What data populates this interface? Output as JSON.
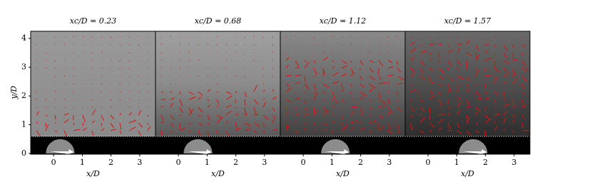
{
  "chart_data": [
    {
      "type": "image",
      "title": "xc/D = 0.23",
      "cylinder_x": 0.23,
      "xlabel": "x/D",
      "ylabel": "y/D",
      "xlim": [
        -0.8,
        3.55
      ],
      "ylim": [
        0,
        4.25
      ],
      "xticks": [
        0,
        1,
        2,
        3
      ],
      "yticks": [
        0,
        1,
        2,
        3,
        4
      ]
    },
    {
      "type": "image",
      "title": "xc/D = 0.68",
      "cylinder_x": 0.68,
      "xlabel": "x/D",
      "xlim": [
        -0.8,
        3.55
      ],
      "ylim": [
        0,
        4.25
      ],
      "xticks": [
        0,
        1,
        2,
        3
      ]
    },
    {
      "type": "image",
      "title": "xc/D = 1.12",
      "cylinder_x": 1.12,
      "xlabel": "x/D",
      "xlim": [
        -0.8,
        3.55
      ],
      "ylim": [
        0,
        4.25
      ],
      "xticks": [
        0,
        1,
        2,
        3
      ]
    },
    {
      "type": "image",
      "title": "xc/D = 1.57",
      "cylinder_x": 1.57,
      "xlabel": "x/D",
      "xlim": [
        -0.8,
        3.55
      ],
      "ylim": [
        0,
        4.25
      ],
      "xticks": [
        0,
        1,
        2,
        3
      ]
    }
  ]
}
